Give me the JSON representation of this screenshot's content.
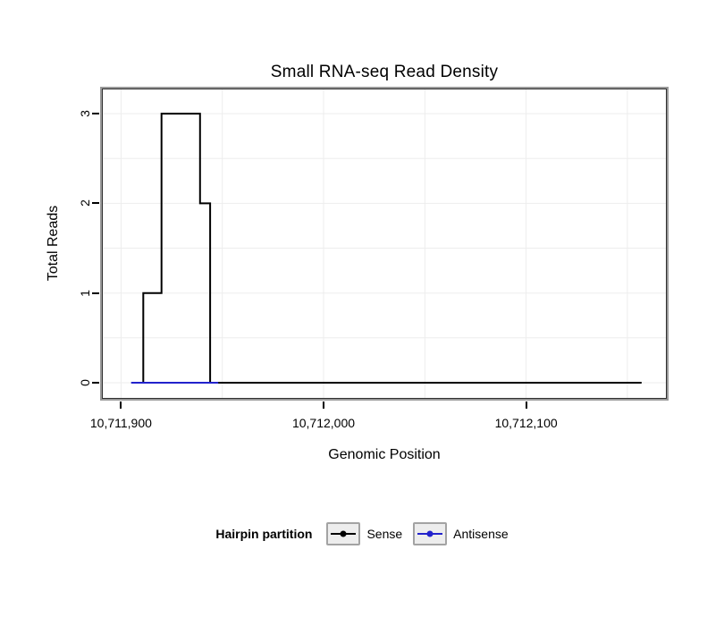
{
  "chart_data": {
    "type": "line",
    "subtype": "step",
    "title": "Small RNA-seq Read Density",
    "xlabel": "Genomic Position",
    "ylabel": "Total Reads",
    "xlim": [
      10711891,
      10712169
    ],
    "ylim": [
      -0.17,
      3.27
    ],
    "grid": {
      "color": "#ededed",
      "vertical": [
        10711900,
        10711950,
        10712000,
        10712050,
        10712100,
        10712150
      ],
      "horizontal": [
        0,
        0.5,
        1,
        1.5,
        2,
        2.5,
        3
      ]
    },
    "x_ticks": [
      {
        "value": 10711900,
        "label": "10,711,900"
      },
      {
        "value": 10712000,
        "label": "10,712,000"
      },
      {
        "value": 10712100,
        "label": "10,712,100"
      }
    ],
    "y_ticks": [
      {
        "value": 0,
        "label": "0"
      },
      {
        "value": 1,
        "label": "1"
      },
      {
        "value": 2,
        "label": "2"
      },
      {
        "value": 3,
        "label": "3"
      }
    ],
    "series": [
      {
        "name": "Sense",
        "color": "#000000",
        "width": 2,
        "points": [
          [
            10711906,
            0
          ],
          [
            10711911,
            0
          ],
          [
            10711911,
            1
          ],
          [
            10711920,
            1
          ],
          [
            10711920,
            3
          ],
          [
            10711939,
            3
          ],
          [
            10711939,
            2
          ],
          [
            10711944,
            2
          ],
          [
            10711944,
            0
          ],
          [
            10712157,
            0
          ]
        ]
      },
      {
        "name": "Antisense",
        "color": "#2222cc",
        "width": 2,
        "points": [
          [
            10711905,
            0
          ],
          [
            10711948,
            0
          ]
        ]
      }
    ],
    "legend": {
      "position": "bottom",
      "title": "Hairpin partition",
      "items": [
        {
          "label": "Sense",
          "color": "#000000"
        },
        {
          "label": "Antisense",
          "color": "#2222cc"
        }
      ]
    }
  }
}
